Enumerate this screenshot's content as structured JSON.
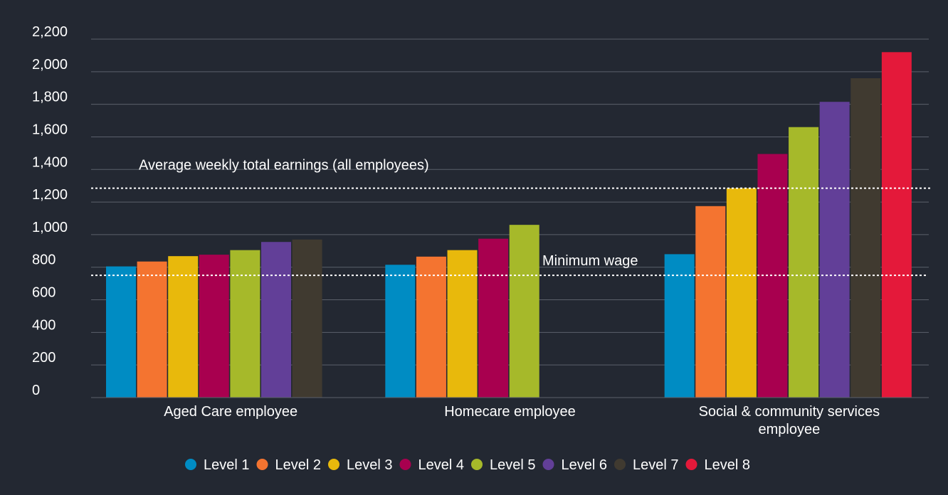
{
  "chart_data": {
    "type": "bar",
    "title": "",
    "xlabel": "",
    "ylabel": "",
    "ylim": [
      0,
      2200
    ],
    "yticks": [
      0,
      200,
      400,
      600,
      800,
      1000,
      1200,
      1400,
      1600,
      1800,
      2000,
      2200
    ],
    "ytick_labels": [
      "0",
      "200",
      "400",
      "600",
      "800",
      "1,000",
      "1,200",
      "1,400",
      "1,600",
      "1,800",
      "2,000",
      "2,200"
    ],
    "grid": true,
    "legend_position": "bottom",
    "categories": [
      [
        "Aged Care employee"
      ],
      [
        "Homecare employee"
      ],
      [
        "Social & community services",
        "employee"
      ]
    ],
    "series": [
      {
        "name": "Level 1",
        "color": "#008cc3",
        "values": [
          805,
          815,
          880
        ]
      },
      {
        "name": "Level 2",
        "color": "#f47430",
        "values": [
          835,
          865,
          1175
        ]
      },
      {
        "name": "Level 3",
        "color": "#e8b90c",
        "values": [
          868,
          905,
          1285
        ]
      },
      {
        "name": "Level 4",
        "color": "#a8004f",
        "values": [
          877,
          975,
          1495
        ]
      },
      {
        "name": "Level 5",
        "color": "#a6b92a",
        "values": [
          905,
          1060,
          1660
        ]
      },
      {
        "name": "Level 6",
        "color": "#623f98",
        "values": [
          955,
          null,
          1815
        ]
      },
      {
        "name": "Level 7",
        "color": "#403a30",
        "values": [
          970,
          null,
          1960
        ]
      },
      {
        "name": "Level 8",
        "color": "#e4193a",
        "values": [
          null,
          null,
          2120
        ]
      }
    ],
    "reference_lines": [
      {
        "label": "Average weekly total earnings (all employees)",
        "value": 1285
      },
      {
        "label": "Minimum wage",
        "value": 750
      }
    ]
  }
}
